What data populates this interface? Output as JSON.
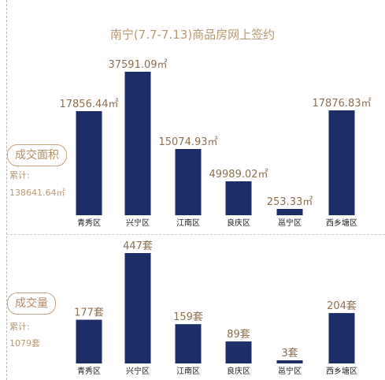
{
  "title": "南宁(7.7-7.13)商品房网上签约",
  "panels": [
    {
      "badge": "成交面积",
      "total_label": "累计:",
      "total_value": "138641.64㎡"
    },
    {
      "badge": "成交量",
      "total_label": "累计:",
      "total_value": "1079套"
    }
  ],
  "colors": {
    "bar": "#1c2d68",
    "accent": "#b89a74"
  },
  "chart_data": [
    {
      "type": "bar",
      "title": "成交面积",
      "unit": "㎡",
      "categories": [
        "青秀区",
        "兴宁区",
        "江南区",
        "良庆区",
        "邕宁区",
        "西乡塘区"
      ],
      "values": [
        17856.44,
        37591.09,
        15074.93,
        49989.02,
        253.33,
        17876.83
      ],
      "labels": [
        "17856.44㎡",
        "37591.09㎡",
        "15074.93㎡",
        "49989.02㎡",
        "253.33㎡",
        "17876.83㎡"
      ]
    },
    {
      "type": "bar",
      "title": "成交量",
      "unit": "套",
      "categories": [
        "青秀区",
        "兴宁区",
        "江南区",
        "良庆区",
        "邕宁区",
        "西乡塘区"
      ],
      "values": [
        177,
        447,
        159,
        89,
        3,
        204
      ],
      "labels": [
        "177套",
        "447套",
        "159套",
        "89套",
        "3套",
        "204套"
      ]
    }
  ]
}
